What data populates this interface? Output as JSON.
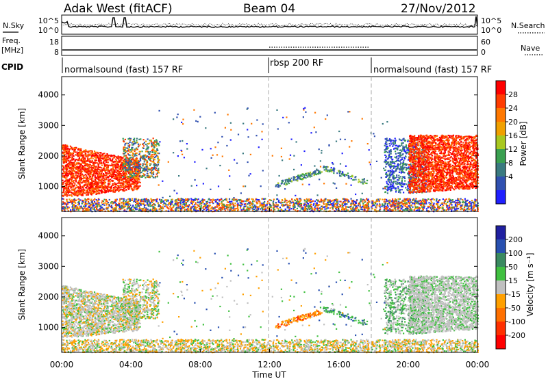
{
  "header": {
    "station": "Adak West (fitACF)",
    "beam": "Beam 04",
    "date": "27/Nov/2012"
  },
  "noise_panel": {
    "left_label": "N.Sky",
    "right_label": "N.Search",
    "left_ticks": [
      "10^5",
      "10^0"
    ],
    "right_ticks": [
      "10^5",
      "10^0"
    ]
  },
  "freq_panel": {
    "left_label_1": "Freq.",
    "left_label_2": "[MHz]",
    "right_label": "Nave",
    "left_ticks": [
      "18",
      "8"
    ],
    "right_ticks": [
      "60",
      "0"
    ]
  },
  "cpid": {
    "label": "CPID",
    "segments": [
      {
        "text": "normalsound (fast) 157 RF"
      },
      {
        "text": "rbsp 200 RF"
      },
      {
        "text": "normalsound (fast) 157 RF"
      }
    ]
  },
  "power_colorbar": {
    "title": "Power [dB]",
    "ticks": [
      "28",
      "24",
      "20",
      "16",
      "12",
      "8",
      "4"
    ],
    "colors": [
      "#ff0000",
      "#ff3c00",
      "#ff7800",
      "#f0a000",
      "#a8c820",
      "#3aa050",
      "#3a7a80",
      "#3050b0",
      "#2020ff"
    ]
  },
  "velocity_colorbar": {
    "title": "Velocity [m s⁻¹]",
    "ticks": [
      "200",
      "100",
      "50",
      "15",
      "-15",
      "-50",
      "-100",
      "-200"
    ],
    "colors": [
      "#2020a0",
      "#2850b0",
      "#3a8a60",
      "#40c040",
      "#c0c0c0",
      "#ffa000",
      "#ff7000",
      "#ff3000",
      "#ff0000"
    ]
  },
  "axes": {
    "ylabel": "Slant Range [km]",
    "xlabel": "Time UT",
    "xticks": [
      "00:00",
      "04:00",
      "08:00",
      "12:00",
      "16:00",
      "20:00",
      "00:00"
    ],
    "yticks": [
      "1000",
      "2000",
      "3000",
      "4000"
    ]
  },
  "chart_data": [
    {
      "type": "heatmap",
      "title": "",
      "xlabel": "",
      "ylabel": "Slant Range [km]",
      "xlim": [
        0,
        24
      ],
      "ylim": [
        180,
        4600
      ],
      "colorbar": "Power [dB]",
      "cpid_boundaries_hours": [
        12,
        18
      ],
      "regions": [
        {
          "x0": 0.0,
          "x1": 4.5,
          "y0": 700,
          "y1": 2400,
          "value": "high-power"
        },
        {
          "x0": 3.5,
          "x1": 5.5,
          "y0": 1300,
          "y1": 2500,
          "value": "mixed"
        },
        {
          "x0": 12.3,
          "x1": 15.0,
          "y0": 1000,
          "y1": 1600,
          "value": "mixed"
        },
        {
          "x0": 15.0,
          "x1": 17.6,
          "y0": 1100,
          "y1": 1650,
          "value": "low"
        },
        {
          "x0": 18.6,
          "x1": 21.0,
          "y0": 800,
          "y1": 2500,
          "value": "low"
        },
        {
          "x0": 20.0,
          "x1": 24.0,
          "y0": 800,
          "y1": 2700,
          "value": "high-power"
        },
        {
          "x0": 0.0,
          "x1": 24.0,
          "y0": 200,
          "y1": 600,
          "value": "ground-scatter"
        }
      ]
    },
    {
      "type": "heatmap",
      "title": "",
      "xlabel": "Time UT",
      "ylabel": "Slant Range [km]",
      "xlim": [
        0,
        24
      ],
      "ylim": [
        180,
        4600
      ],
      "colorbar": "Velocity [m s⁻¹]",
      "cpid_boundaries_hours": [
        12,
        18
      ],
      "regions": [
        {
          "x0": 0.0,
          "x1": 5.5,
          "y0": 700,
          "y1": 2500,
          "value": "near-zero"
        },
        {
          "x0": 12.3,
          "x1": 15.0,
          "y0": 1000,
          "y1": 1600,
          "value": "negative"
        },
        {
          "x0": 15.0,
          "x1": 17.6,
          "y0": 1100,
          "y1": 1650,
          "value": "positive"
        },
        {
          "x0": 18.6,
          "x1": 24.0,
          "y0": 800,
          "y1": 2700,
          "value": "near-zero"
        },
        {
          "x0": 0.0,
          "x1": 24.0,
          "y0": 200,
          "y1": 600,
          "value": "negative-low"
        }
      ]
    }
  ]
}
